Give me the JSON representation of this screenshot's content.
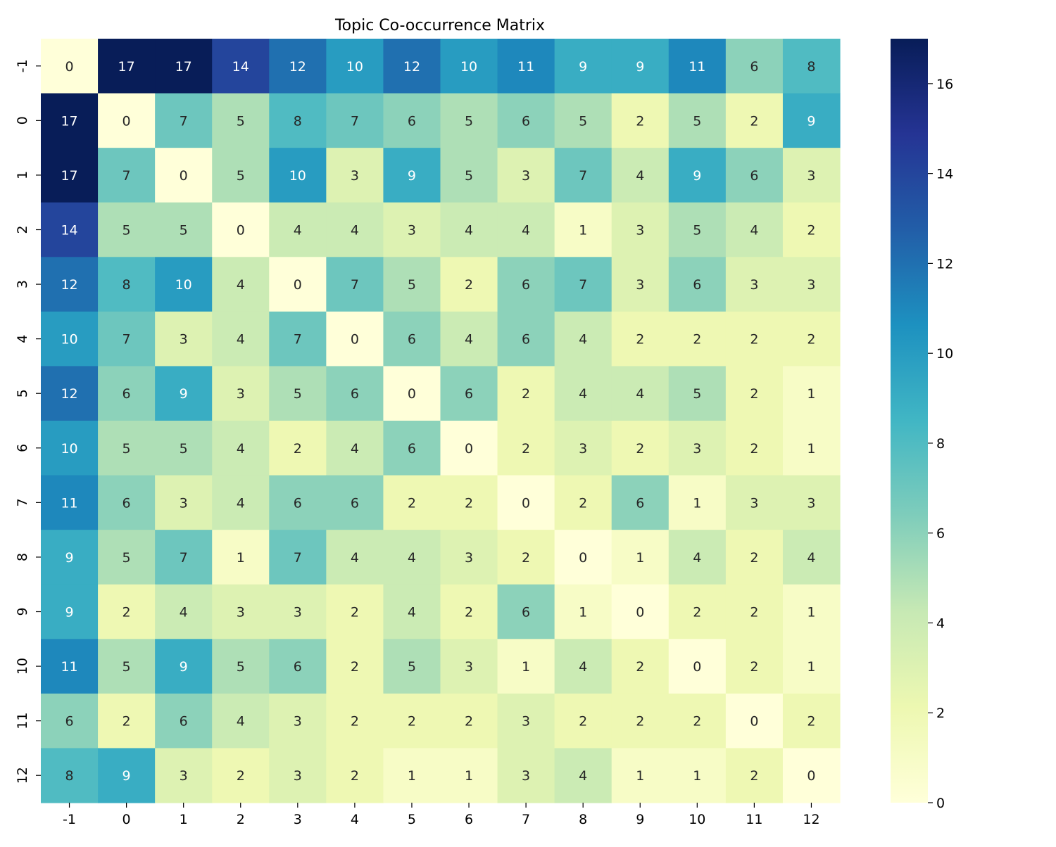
{
  "chart_data": {
    "type": "heatmap",
    "title": "Topic Co-occurrence Matrix",
    "x_labels": [
      "-1",
      "0",
      "1",
      "2",
      "3",
      "4",
      "5",
      "6",
      "7",
      "8",
      "9",
      "10",
      "11",
      "12"
    ],
    "y_labels": [
      "-1",
      "0",
      "1",
      "2",
      "3",
      "4",
      "5",
      "6",
      "7",
      "8",
      "9",
      "10",
      "11",
      "12"
    ],
    "values": [
      [
        0,
        17,
        17,
        14,
        12,
        10,
        12,
        10,
        11,
        9,
        9,
        11,
        6,
        8
      ],
      [
        17,
        0,
        7,
        5,
        8,
        7,
        6,
        5,
        6,
        5,
        2,
        5,
        2,
        9
      ],
      [
        17,
        7,
        0,
        5,
        10,
        3,
        9,
        5,
        3,
        7,
        4,
        9,
        6,
        3
      ],
      [
        14,
        5,
        5,
        0,
        4,
        4,
        3,
        4,
        4,
        1,
        3,
        5,
        4,
        2
      ],
      [
        12,
        8,
        10,
        4,
        0,
        7,
        5,
        2,
        6,
        7,
        3,
        6,
        3,
        3
      ],
      [
        10,
        7,
        3,
        4,
        7,
        0,
        6,
        4,
        6,
        4,
        2,
        2,
        2,
        2
      ],
      [
        12,
        6,
        9,
        3,
        5,
        6,
        0,
        6,
        2,
        4,
        4,
        5,
        2,
        1
      ],
      [
        10,
        5,
        5,
        4,
        2,
        4,
        6,
        0,
        2,
        3,
        2,
        3,
        2,
        1
      ],
      [
        11,
        6,
        3,
        4,
        6,
        6,
        2,
        2,
        0,
        2,
        6,
        1,
        3,
        3
      ],
      [
        9,
        5,
        7,
        1,
        7,
        4,
        4,
        3,
        2,
        0,
        1,
        4,
        2,
        4
      ],
      [
        9,
        2,
        4,
        3,
        3,
        2,
        4,
        2,
        6,
        1,
        0,
        2,
        2,
        1
      ],
      [
        11,
        5,
        9,
        5,
        6,
        2,
        5,
        3,
        1,
        4,
        2,
        0,
        2,
        1
      ],
      [
        6,
        2,
        6,
        4,
        3,
        2,
        2,
        2,
        3,
        2,
        2,
        2,
        0,
        2
      ],
      [
        8,
        9,
        3,
        2,
        3,
        2,
        1,
        1,
        3,
        4,
        1,
        1,
        2,
        0
      ]
    ],
    "colorbar": {
      "min": 0,
      "max": 17,
      "ticks": [
        0,
        2,
        4,
        6,
        8,
        10,
        12,
        14,
        16
      ]
    },
    "colormap": "YlGnBu",
    "colormap_stops": [
      "#ffffd9",
      "#edf8b1",
      "#c7e9b4",
      "#7fcdbb",
      "#41b6c4",
      "#1d91c0",
      "#225ea8",
      "#253494",
      "#081d58"
    ],
    "grid": false
  }
}
